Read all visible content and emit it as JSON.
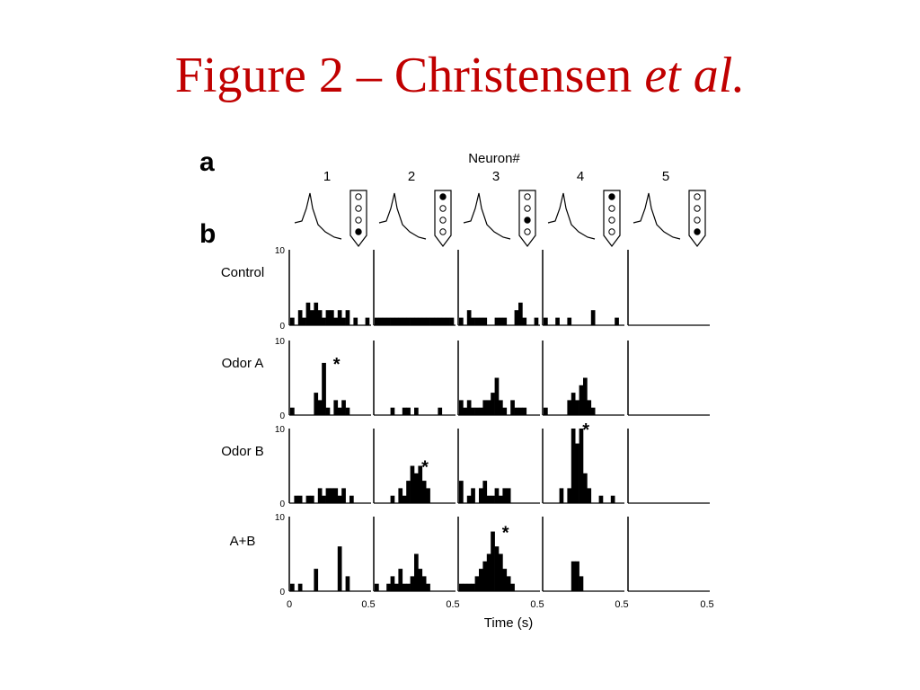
{
  "slide": {
    "title_main": "Figure 2 – Christensen ",
    "title_italic": "et al.",
    "title_color": "#c00000"
  },
  "figure": {
    "panel_a_label": "a",
    "panel_b_label": "b",
    "neuron_header": "Neuron#",
    "neurons": [
      "1",
      "2",
      "3",
      "4",
      "5"
    ],
    "glomerulus_markers": [
      [
        0,
        0,
        0,
        1
      ],
      [
        1,
        0,
        0,
        0
      ],
      [
        0,
        0,
        1,
        0
      ],
      [
        1,
        0,
        0,
        0
      ],
      [
        0,
        0,
        0,
        1
      ]
    ],
    "colors": {
      "ink": "#000000",
      "marker_fill": "#000000",
      "marker_empty": "#ffffff"
    }
  },
  "chart_data": {
    "type": "bar",
    "subtype": "histogram-grid",
    "xlabel": "Time (s)",
    "xlim": [
      0,
      0.5
    ],
    "ylim": [
      0,
      10
    ],
    "y_tick_labels": [
      "0",
      "10"
    ],
    "x_tick_labels": [
      "0",
      "0.5"
    ],
    "bins_per_panel": 20,
    "significance_marker": "*",
    "rows": [
      {
        "label": "Control",
        "panels": [
          {
            "neuron": "1",
            "values": [
              1,
              0,
              2,
              1,
              3,
              2,
              3,
              2,
              1,
              2,
              2,
              1,
              2,
              1,
              2,
              0,
              1,
              0,
              0,
              1
            ],
            "star": false
          },
          {
            "neuron": "2",
            "values": [
              1,
              1,
              1,
              1,
              1,
              1,
              1,
              1,
              1,
              1,
              1,
              1,
              1,
              1,
              1,
              1,
              1,
              1,
              1,
              1
            ],
            "star": false
          },
          {
            "neuron": "3",
            "values": [
              1,
              0,
              2,
              1,
              1,
              1,
              1,
              0,
              0,
              1,
              1,
              1,
              0,
              0,
              2,
              3,
              1,
              0,
              0,
              1
            ],
            "star": false
          },
          {
            "neuron": "4",
            "values": [
              1,
              0,
              0,
              1,
              0,
              0,
              1,
              0,
              0,
              0,
              0,
              0,
              2,
              0,
              0,
              0,
              0,
              0,
              1,
              0
            ],
            "star": false
          },
          {
            "neuron": "5",
            "values": [
              0,
              0,
              0,
              0,
              0,
              0,
              0,
              0,
              0,
              0,
              0,
              0,
              0,
              0,
              0,
              0,
              0,
              0,
              0,
              0
            ],
            "star": false
          }
        ]
      },
      {
        "label": "Odor A",
        "panels": [
          {
            "neuron": "1",
            "values": [
              1,
              0,
              0,
              0,
              0,
              0,
              3,
              2,
              7,
              1,
              0,
              2,
              1,
              2,
              1,
              0,
              0,
              0,
              0,
              0
            ],
            "star": true
          },
          {
            "neuron": "2",
            "values": [
              0,
              0,
              0,
              0,
              1,
              0,
              0,
              1,
              1,
              0,
              1,
              0,
              0,
              0,
              0,
              0,
              1,
              0,
              0,
              0
            ],
            "star": false
          },
          {
            "neuron": "3",
            "values": [
              2,
              1,
              2,
              1,
              1,
              1,
              2,
              2,
              3,
              5,
              2,
              1,
              0,
              2,
              1,
              1,
              1,
              0,
              0,
              0
            ],
            "star": false
          },
          {
            "neuron": "4",
            "values": [
              1,
              0,
              0,
              0,
              0,
              0,
              2,
              3,
              2,
              4,
              5,
              2,
              1,
              0,
              0,
              0,
              0,
              0,
              0,
              0
            ],
            "star": false
          },
          {
            "neuron": "5",
            "values": [
              0,
              0,
              0,
              0,
              0,
              0,
              0,
              0,
              0,
              0,
              0,
              0,
              0,
              0,
              0,
              0,
              0,
              0,
              0,
              0
            ],
            "star": false
          }
        ]
      },
      {
        "label": "Odor B",
        "panels": [
          {
            "neuron": "1",
            "values": [
              0,
              1,
              1,
              0,
              1,
              1,
              0,
              2,
              1,
              2,
              2,
              2,
              1,
              2,
              0,
              1,
              0,
              0,
              0,
              0
            ],
            "star": false
          },
          {
            "neuron": "2",
            "values": [
              0,
              0,
              0,
              0,
              1,
              0,
              2,
              1,
              3,
              5,
              4,
              5,
              3,
              2,
              0,
              0,
              0,
              0,
              0,
              0
            ],
            "star": true
          },
          {
            "neuron": "3",
            "values": [
              3,
              0,
              1,
              2,
              0,
              2,
              3,
              1,
              1,
              2,
              1,
              2,
              2,
              0,
              0,
              0,
              0,
              0,
              0,
              0
            ],
            "star": false
          },
          {
            "neuron": "4",
            "values": [
              0,
              0,
              0,
              0,
              2,
              0,
              2,
              10,
              8,
              10,
              4,
              2,
              0,
              0,
              1,
              0,
              0,
              1,
              0,
              0
            ],
            "star": true
          },
          {
            "neuron": "5",
            "values": [
              0,
              0,
              0,
              0,
              0,
              0,
              0,
              0,
              0,
              0,
              0,
              0,
              0,
              0,
              0,
              0,
              0,
              0,
              0,
              0
            ],
            "star": false
          }
        ]
      },
      {
        "label": "A+B",
        "panels": [
          {
            "neuron": "1",
            "values": [
              1,
              0,
              1,
              0,
              0,
              0,
              3,
              0,
              0,
              0,
              0,
              0,
              6,
              0,
              2,
              0,
              0,
              0,
              0,
              0
            ],
            "star": false
          },
          {
            "neuron": "2",
            "values": [
              1,
              0,
              0,
              1,
              2,
              1,
              3,
              1,
              1,
              2,
              5,
              3,
              2,
              1,
              0,
              0,
              0,
              0,
              0,
              0
            ],
            "star": false
          },
          {
            "neuron": "3",
            "values": [
              1,
              1,
              1,
              1,
              2,
              3,
              4,
              5,
              8,
              6,
              5,
              3,
              2,
              1,
              0,
              0,
              0,
              0,
              0,
              0
            ],
            "star": true
          },
          {
            "neuron": "4",
            "values": [
              0,
              0,
              0,
              0,
              0,
              0,
              0,
              4,
              4,
              2,
              0,
              0,
              0,
              0,
              0,
              0,
              0,
              0,
              0,
              0
            ],
            "star": false
          },
          {
            "neuron": "5",
            "values": [
              0,
              0,
              0,
              0,
              0,
              0,
              0,
              0,
              0,
              0,
              0,
              0,
              0,
              0,
              0,
              0,
              0,
              0,
              0,
              0
            ],
            "star": false
          }
        ]
      }
    ]
  }
}
